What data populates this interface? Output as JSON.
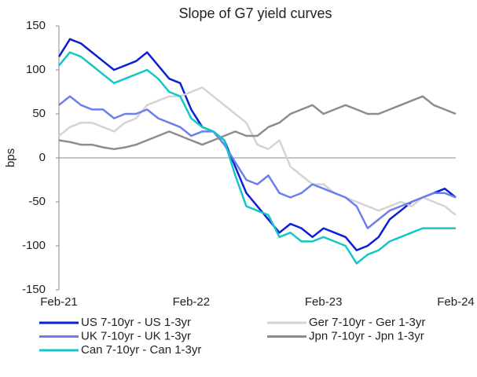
{
  "chart_data": {
    "type": "line",
    "title": "Slope of G7 yield curves",
    "y_label": "bps",
    "categories": [
      "Feb-21",
      null,
      null,
      null,
      null,
      null,
      null,
      null,
      null,
      null,
      null,
      null,
      "Feb-22",
      null,
      null,
      null,
      null,
      null,
      null,
      null,
      null,
      null,
      null,
      null,
      "Feb-23",
      null,
      null,
      null,
      null,
      null,
      null,
      null,
      null,
      null,
      null,
      null,
      "Feb-24"
    ],
    "ylim": [
      -150,
      150
    ],
    "yticks": [
      150,
      100,
      50,
      0,
      -50,
      -100,
      -150
    ],
    "series": [
      {
        "name": "US 7-10yr - US 1-3yr",
        "color": "#0a1fd6",
        "values": [
          115,
          135,
          130,
          120,
          110,
          100,
          105,
          110,
          120,
          105,
          90,
          85,
          55,
          35,
          30,
          20,
          -10,
          -40,
          -55,
          -70,
          -85,
          -75,
          -80,
          -90,
          -80,
          -85,
          -90,
          -105,
          -100,
          -90,
          -70,
          -60,
          -50,
          -45,
          -40,
          -35,
          -45
        ]
      },
      {
        "name": "Ger 7-10yr - Ger 1-3yr",
        "color": "#d4d4d4",
        "values": [
          25,
          35,
          40,
          40,
          35,
          30,
          40,
          45,
          60,
          65,
          70,
          70,
          75,
          80,
          70,
          60,
          50,
          40,
          15,
          10,
          20,
          -10,
          -20,
          -30,
          -30,
          -40,
          -45,
          -50,
          -55,
          -60,
          -55,
          -50,
          -55,
          -45,
          -50,
          -55,
          -65
        ]
      },
      {
        "name": "UK 7-10yr - UK 1-3yr",
        "color": "#6b7ff0",
        "values": [
          60,
          70,
          60,
          55,
          55,
          45,
          50,
          50,
          55,
          45,
          40,
          35,
          25,
          30,
          30,
          15,
          -5,
          -25,
          -30,
          -20,
          -40,
          -45,
          -40,
          -30,
          -35,
          -40,
          -45,
          -55,
          -80,
          -70,
          -60,
          -55,
          -50,
          -45,
          -40,
          -40,
          -45
        ]
      },
      {
        "name": "Jpn 7-10yr - Jpn 1-3yr",
        "color": "#8c8c8c",
        "values": [
          20,
          18,
          15,
          15,
          12,
          10,
          12,
          15,
          20,
          25,
          30,
          25,
          20,
          15,
          20,
          25,
          30,
          25,
          25,
          35,
          40,
          50,
          55,
          60,
          50,
          55,
          60,
          55,
          50,
          50,
          55,
          60,
          65,
          70,
          60,
          55,
          50
        ]
      },
      {
        "name": "Can 7-10yr - Can 1-3yr",
        "color": "#13c7c7",
        "values": [
          105,
          120,
          115,
          105,
          95,
          85,
          90,
          95,
          100,
          90,
          75,
          70,
          45,
          35,
          30,
          20,
          -20,
          -55,
          -60,
          -65,
          -90,
          -85,
          -95,
          -95,
          -90,
          -95,
          -100,
          -120,
          -110,
          -105,
          -95,
          -90,
          -85,
          -80,
          -80,
          -80,
          -80
        ]
      }
    ],
    "grid": false
  }
}
